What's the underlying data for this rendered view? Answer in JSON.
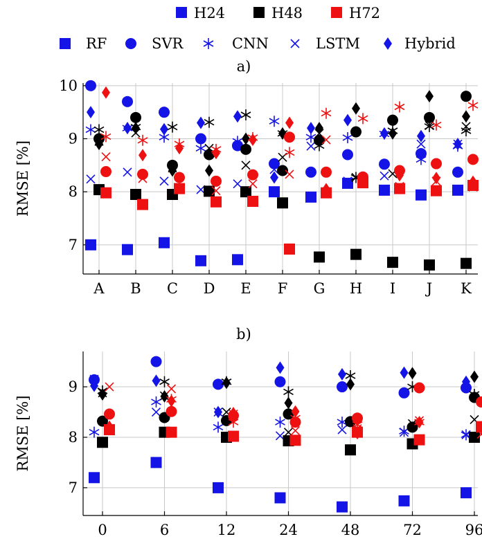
{
  "colors": {
    "H24": "#1414e6",
    "H48": "#000000",
    "H72": "#ee1111",
    "grid": "#c8c8c8"
  },
  "legend": {
    "horizons": [
      "H24",
      "H48",
      "H72"
    ],
    "models": [
      "RF",
      "SVR",
      "CNN",
      "LSTM",
      "Hybrid"
    ],
    "model_markers": [
      "square",
      "circle",
      "asterisk",
      "cross",
      "diamond"
    ]
  },
  "captions": [
    "a)",
    "b)"
  ],
  "chart_data": [
    {
      "type": "scatter",
      "xlabel": "",
      "ylabel": "RMSE [%]",
      "categories": [
        "A",
        "B",
        "C",
        "D",
        "E",
        "F",
        "G",
        "H",
        "I",
        "J",
        "K"
      ],
      "ylim": [
        6.45,
        10.05
      ],
      "yticks": [
        7,
        8,
        9,
        10
      ],
      "grid": true,
      "series": [
        {
          "name": "RF",
          "horizon": "H24",
          "values": [
            7.0,
            6.91,
            7.04,
            6.7,
            6.72,
            8.0,
            7.9,
            8.16,
            8.03,
            7.94,
            8.03
          ]
        },
        {
          "name": "SVR",
          "horizon": "H24",
          "values": [
            10.0,
            9.7,
            9.5,
            9.0,
            8.87,
            8.53,
            8.37,
            8.7,
            8.52,
            8.72,
            8.37
          ]
        },
        {
          "name": "CNN",
          "horizon": "H24",
          "values": [
            9.17,
            9.2,
            9.03,
            8.82,
            8.95,
            9.33,
            9.03,
            9.02,
            9.09,
            8.61,
            8.86
          ]
        },
        {
          "name": "LSTM",
          "horizon": "H24",
          "values": [
            8.24,
            8.37,
            8.2,
            8.04,
            8.15,
            8.42,
            8.86,
            8.2,
            8.3,
            8.9,
            8.9
          ]
        },
        {
          "name": "Hybrid",
          "horizon": "H24",
          "values": [
            9.5,
            9.2,
            9.18,
            9.3,
            9.42,
            8.27,
            9.2,
            9.35,
            9.1,
            9.05,
            8.9
          ]
        },
        {
          "name": "RF",
          "horizon": "H48",
          "values": [
            8.04,
            7.95,
            7.95,
            8.01,
            8.0,
            7.79,
            6.77,
            6.82,
            6.67,
            6.62,
            6.65
          ]
        },
        {
          "name": "SVR",
          "horizon": "H48",
          "values": [
            9.0,
            9.4,
            8.5,
            8.7,
            8.8,
            8.4,
            8.97,
            9.13,
            9.35,
            9.4,
            9.8
          ]
        },
        {
          "name": "CNN",
          "horizon": "H48",
          "values": [
            9.17,
            9.22,
            9.22,
            9.31,
            9.45,
            9.1,
            8.87,
            8.27,
            9.15,
            9.23,
            9.15
          ]
        },
        {
          "name": "LSTM",
          "horizon": "H48",
          "values": [
            8.95,
            9.11,
            8.45,
            8.82,
            8.5,
            8.65,
            9.1,
            8.27,
            8.34,
            9.25,
            9.23
          ]
        },
        {
          "name": "Hybrid",
          "horizon": "H48",
          "values": [
            8.9,
            9.2,
            8.4,
            8.4,
            9.0,
            9.1,
            9.2,
            9.57,
            9.1,
            9.8,
            9.42
          ]
        },
        {
          "name": "RF",
          "horizon": "H72",
          "values": [
            7.98,
            7.76,
            8.06,
            7.81,
            7.82,
            6.92,
            7.98,
            8.17,
            8.06,
            8.02,
            8.12
          ]
        },
        {
          "name": "SVR",
          "horizon": "H72",
          "values": [
            8.38,
            8.33,
            8.27,
            8.2,
            8.32,
            9.03,
            8.37,
            8.28,
            8.4,
            8.53,
            8.61
          ]
        },
        {
          "name": "CNN",
          "horizon": "H72",
          "values": [
            9.04,
            8.97,
            8.9,
            8.8,
            9.02,
            8.74,
            9.48,
            9.38,
            9.6,
            9.26,
            9.63
          ]
        },
        {
          "name": "LSTM",
          "horizon": "H72",
          "values": [
            8.66,
            8.25,
            8.05,
            8.02,
            8.15,
            8.33,
            8.98,
            8.19,
            8.1,
            8.2,
            8.09
          ]
        },
        {
          "name": "Hybrid",
          "horizon": "H72",
          "values": [
            9.87,
            8.69,
            8.82,
            8.73,
            8.98,
            9.3,
            8.05,
            8.22,
            8.31,
            8.26,
            8.19
          ]
        }
      ]
    },
    {
      "type": "scatter",
      "xlabel": "",
      "ylabel": "RMSE [%]",
      "categories": [
        "0",
        "6",
        "12",
        "24",
        "48",
        "72",
        "96"
      ],
      "ylim": [
        6.45,
        9.7
      ],
      "yticks": [
        7,
        8,
        9
      ],
      "grid": true,
      "series": [
        {
          "name": "RF",
          "horizon": "H24",
          "values": [
            7.2,
            7.5,
            7.0,
            6.8,
            6.62,
            6.74,
            6.9
          ]
        },
        {
          "name": "SVR",
          "horizon": "H24",
          "values": [
            9.14,
            9.5,
            9.05,
            9.1,
            9.0,
            8.88,
            8.98
          ]
        },
        {
          "name": "CNN",
          "horizon": "H24",
          "values": [
            8.1,
            8.7,
            8.2,
            8.3,
            8.3,
            8.12,
            8.05
          ]
        },
        {
          "name": "LSTM",
          "horizon": "H24",
          "values": [
            9.15,
            8.5,
            8.5,
            8.03,
            8.15,
            8.1,
            8.05
          ]
        },
        {
          "name": "Hybrid",
          "horizon": "H24",
          "values": [
            9.02,
            9.12,
            8.5,
            9.38,
            9.25,
            9.28,
            9.1
          ]
        },
        {
          "name": "RF",
          "horizon": "H48",
          "values": [
            7.9,
            8.1,
            8.0,
            7.93,
            7.75,
            7.87,
            8.0
          ]
        },
        {
          "name": "SVR",
          "horizon": "H48",
          "values": [
            8.32,
            8.39,
            8.33,
            8.46,
            8.31,
            8.2,
            8.79
          ]
        },
        {
          "name": "CNN",
          "horizon": "H48",
          "values": [
            8.92,
            9.1,
            9.1,
            8.9,
            9.22,
            9.0,
            8.85
          ]
        },
        {
          "name": "LSTM",
          "horizon": "H48",
          "values": [
            8.88,
            8.82,
            8.5,
            8.1,
            8.3,
            8.27,
            8.35
          ]
        },
        {
          "name": "Hybrid",
          "horizon": "H48",
          "values": [
            8.85,
            8.81,
            9.08,
            8.68,
            9.05,
            9.27,
            9.2
          ]
        },
        {
          "name": "RF",
          "horizon": "H72",
          "values": [
            8.15,
            8.1,
            8.02,
            7.94,
            8.1,
            7.95,
            8.21
          ]
        },
        {
          "name": "SVR",
          "horizon": "H72",
          "values": [
            8.46,
            8.51,
            8.43,
            8.3,
            8.38,
            8.98,
            8.7
          ]
        },
        {
          "name": "CNN",
          "horizon": "H72",
          "values": [
            8.2,
            8.75,
            8.3,
            8.38,
            8.25,
            8.3,
            8.15
          ]
        },
        {
          "name": "LSTM",
          "horizon": "H72",
          "values": [
            9.0,
            8.96,
            8.46,
            8.13,
            8.17,
            8.33,
            8.06
          ]
        },
        {
          "name": "Hybrid",
          "horizon": "H72",
          "values": [
            8.21,
            8.72,
            8.48,
            8.51,
            8.08,
            8.3,
            8.2
          ]
        }
      ]
    }
  ]
}
